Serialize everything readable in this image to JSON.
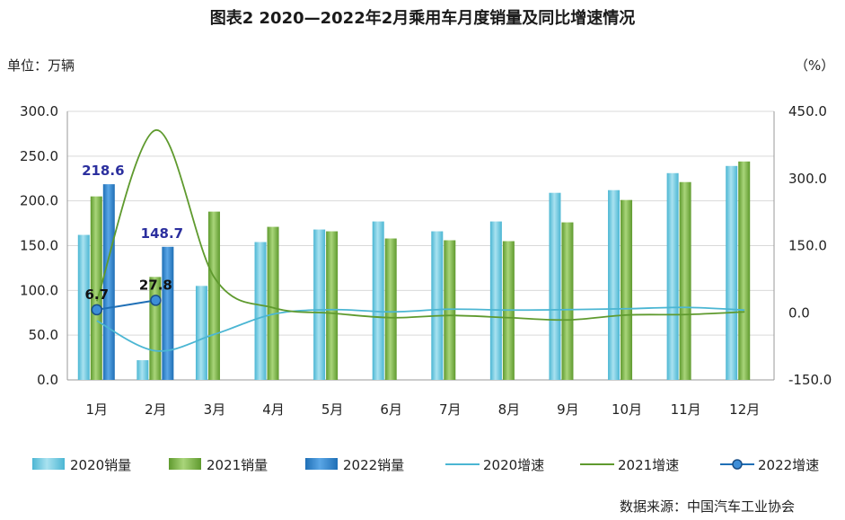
{
  "title": "图表2    2020—2022年2月乘用车月度销量及同比增速情况",
  "y_left_unit": "单位：万辆",
  "y_right_unit": "（%）",
  "source": "数据来源：中国汽车工业协会",
  "colors": {
    "s2020": "#4bb6d3",
    "s2021": "#5f9a2e",
    "s2022": "#1f6fb6",
    "grid": "#d9d9d9",
    "label2022": "#2b2f9e"
  },
  "chart_data": {
    "type": "bar",
    "categories": [
      "1月",
      "2月",
      "3月",
      "4月",
      "5月",
      "6月",
      "7月",
      "8月",
      "9月",
      "10月",
      "11月",
      "12月"
    ],
    "ylim_left": [
      0,
      300
    ],
    "yticks_left": [
      "0.0",
      "50.0",
      "100.0",
      "150.0",
      "200.0",
      "250.0",
      "300.0"
    ],
    "ylim_right": [
      -150,
      450
    ],
    "yticks_right": [
      "-150.0",
      "0.0",
      "150.0",
      "300.0",
      "450.0"
    ],
    "series": [
      {
        "name": "2020销量",
        "kind": "bar",
        "axis": "left",
        "values": [
          162,
          22,
          105,
          154,
          168,
          177,
          166,
          177,
          209,
          212,
          231,
          239
        ]
      },
      {
        "name": "2021销量",
        "kind": "bar",
        "axis": "left",
        "values": [
          205,
          115,
          188,
          171,
          166,
          158,
          156,
          155,
          176,
          201,
          221,
          244
        ]
      },
      {
        "name": "2022销量",
        "kind": "bar",
        "axis": "left",
        "values": [
          218.6,
          148.7,
          null,
          null,
          null,
          null,
          null,
          null,
          null,
          null,
          null,
          null
        ]
      },
      {
        "name": "2020增速",
        "kind": "line",
        "axis": "right",
        "values": [
          -18,
          -85,
          -48,
          -3,
          7,
          2,
          8,
          6,
          7,
          9,
          12,
          6
        ]
      },
      {
        "name": "2021增速",
        "kind": "line",
        "axis": "right",
        "values": [
          26,
          408,
          78,
          11,
          -1,
          -11,
          -6,
          -11,
          -16,
          -5,
          -4,
          2
        ]
      },
      {
        "name": "2022增速",
        "kind": "line",
        "axis": "right",
        "values": [
          6.7,
          27.8,
          null,
          null,
          null,
          null,
          null,
          null,
          null,
          null,
          null,
          null
        ]
      }
    ],
    "data_labels": [
      {
        "series": "2022销量",
        "index": 0,
        "text": "218.6"
      },
      {
        "series": "2022销量",
        "index": 1,
        "text": "148.7"
      },
      {
        "series": "2022增速",
        "index": 0,
        "text": "6.7"
      },
      {
        "series": "2022增速",
        "index": 1,
        "text": "27.8"
      }
    ],
    "grid": true,
    "legend_position": "bottom"
  }
}
